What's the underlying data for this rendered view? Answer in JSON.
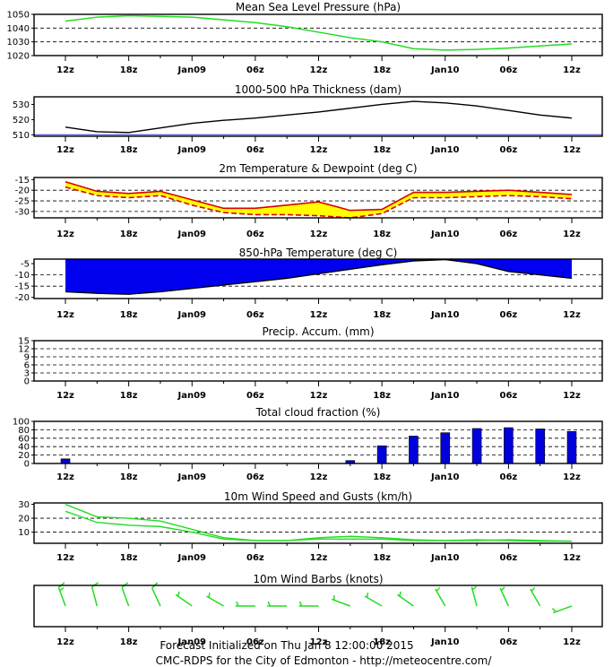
{
  "x_labels": [
    "12z",
    "18z",
    "Jan09",
    "06z",
    "12z",
    "18z",
    "Jan10",
    "06z",
    "12z"
  ],
  "colors": {
    "frame": "#000000",
    "grid": "#000000",
    "mslp_line": "#22dd22",
    "thickness_line": "#000000",
    "thickness_ref": "#3333cc",
    "temp_fill": "#ffff00",
    "temp_line": "#dd0000",
    "t850_fill": "#0000ee",
    "cloud_bar": "#0000dd",
    "wind_line": "#22dd22",
    "barb": "#22dd22"
  },
  "chart_data": [
    {
      "id": "mslp",
      "type": "line",
      "title": "Mean Sea Level Pressure (hPa)",
      "x": [
        0,
        1,
        2,
        3,
        4,
        5,
        6,
        7,
        8,
        9,
        10,
        11,
        12,
        13,
        14,
        15,
        16
      ],
      "series": [
        {
          "values": [
            1045,
            1048,
            1049,
            1048.5,
            1048,
            1046,
            1044,
            1041,
            1037,
            1033,
            1030,
            1025,
            1024,
            1024.5,
            1025.5,
            1027,
            1028.5
          ]
        }
      ],
      "ylim": [
        1020,
        1050
      ],
      "yticks": [
        1020,
        1030,
        1040,
        1050
      ],
      "ygrid": [
        1030,
        1040
      ],
      "grid": true
    },
    {
      "id": "thickness",
      "type": "line",
      "title": "1000-500 hPa Thickness (dam)",
      "x": [
        0,
        1,
        2,
        3,
        4,
        5,
        6,
        7,
        8,
        9,
        10,
        11,
        12,
        13,
        14,
        15,
        16
      ],
      "series": [
        {
          "values": [
            515,
            512,
            511.5,
            514.5,
            517.5,
            519.5,
            521,
            523,
            525,
            527.5,
            530,
            532,
            531,
            529,
            526,
            523,
            521
          ]
        }
      ],
      "reference_line": 510,
      "ylim": [
        509,
        535
      ],
      "yticks": [
        510,
        520,
        530
      ],
      "grid": false
    },
    {
      "id": "temp_dew",
      "type": "area",
      "title": "2m Temperature & Dewpoint (deg C)",
      "x": [
        0,
        1,
        2,
        3,
        4,
        5,
        6,
        7,
        8,
        9,
        10,
        11,
        12,
        13,
        14,
        15,
        16
      ],
      "series": [
        {
          "values": [
            -16,
            -20.5,
            -21.5,
            -20.5,
            -24.5,
            -28.5,
            -28.5,
            -27,
            -25.5,
            -29.5,
            -29,
            -21,
            -21,
            -20.5,
            -20,
            -21,
            -22
          ]
        },
        {
          "values": [
            -18.5,
            -22.5,
            -23.5,
            -22.5,
            -27,
            -30.5,
            -31.5,
            -31.5,
            -32,
            -33,
            -31,
            -23.5,
            -23.5,
            -23,
            -22.5,
            -23,
            -24
          ]
        }
      ],
      "ylim": [
        -33,
        -14
      ],
      "yticks": [
        -15,
        -20,
        -25,
        -30
      ],
      "ygrid": [
        -20,
        -25,
        -30
      ],
      "grid": true
    },
    {
      "id": "t850",
      "type": "area",
      "title": "850-hPa Temperature (deg C)",
      "x": [
        0,
        1,
        2,
        3,
        4,
        5,
        6,
        7,
        8,
        9,
        10,
        11,
        12,
        13,
        14,
        15,
        16
      ],
      "series": [
        {
          "values": [
            -17.5,
            -18.2,
            -18.6,
            -17.5,
            -16,
            -14.5,
            -13,
            -11.5,
            -9.5,
            -7.5,
            -5.5,
            -3.8,
            -3.2,
            -5,
            -8.5,
            -10,
            -11.5
          ]
        }
      ],
      "fill_to": -3,
      "ylim": [
        -20.5,
        -3
      ],
      "yticks": [
        -5,
        -10,
        -15,
        -20
      ],
      "ygrid": [
        -10,
        -15
      ],
      "grid": true
    },
    {
      "id": "precip",
      "type": "bar",
      "title": "Precip. Accum. (mm)",
      "x": [],
      "values": [],
      "ylim": [
        0,
        15
      ],
      "yticks": [
        0,
        3,
        6,
        9,
        12,
        15
      ],
      "ygrid": [
        3,
        6,
        9,
        12
      ],
      "grid": true
    },
    {
      "id": "cloud",
      "type": "bar",
      "title": "Total cloud fraction (%)",
      "x": [
        0,
        1,
        2,
        3,
        4,
        5,
        6,
        7,
        8,
        9,
        10,
        11,
        12,
        13,
        14,
        15,
        16
      ],
      "values": [
        11,
        0,
        0,
        0,
        0,
        0,
        0,
        0,
        0,
        7,
        42,
        65,
        73,
        83,
        85,
        82,
        76
      ],
      "ylim": [
        0,
        100
      ],
      "yticks": [
        0,
        20,
        40,
        60,
        80,
        100
      ],
      "ygrid": [
        20,
        40,
        60,
        80
      ],
      "grid": true
    },
    {
      "id": "wind",
      "type": "line",
      "title": "10m Wind Speed and Gusts (km/h)",
      "x": [
        0,
        1,
        2,
        3,
        4,
        5,
        6,
        7,
        8,
        9,
        10,
        11,
        12,
        13,
        14,
        15,
        16
      ],
      "series": [
        {
          "values": [
            30,
            21,
            20,
            18,
            12,
            6,
            4,
            4,
            6,
            7,
            6,
            4.5,
            4,
            4,
            4.5,
            4,
            3.5
          ]
        },
        {
          "values": [
            25,
            17,
            15,
            14,
            10,
            5,
            4,
            4,
            5,
            5,
            5,
            4,
            4,
            4.5,
            4,
            3.5,
            3.5
          ]
        }
      ],
      "ylim": [
        2,
        31
      ],
      "yticks": [
        10,
        20,
        30
      ],
      "ygrid": [
        10,
        20
      ],
      "grid": true
    },
    {
      "id": "barbs",
      "type": "scatter",
      "title": "10m Wind Barbs  (knots)",
      "x": [
        0,
        1,
        2,
        3,
        4,
        5,
        6,
        7,
        8,
        9,
        10,
        11,
        12,
        13,
        14,
        15,
        16
      ],
      "directions_deg": [
        340,
        345,
        340,
        335,
        305,
        300,
        270,
        270,
        270,
        290,
        300,
        305,
        330,
        345,
        335,
        330,
        250
      ],
      "speeds_kt": [
        15,
        10,
        10,
        10,
        5,
        5,
        5,
        5,
        5,
        5,
        5,
        5,
        5,
        5,
        5,
        5,
        5
      ],
      "grid": false
    }
  ],
  "footer": {
    "line1": "Forecast Initialized on Thu Jan  8 12:00:00 2015",
    "line2": "CMC-RDPS for the City of Edmonton - http://meteocentre.com/"
  }
}
